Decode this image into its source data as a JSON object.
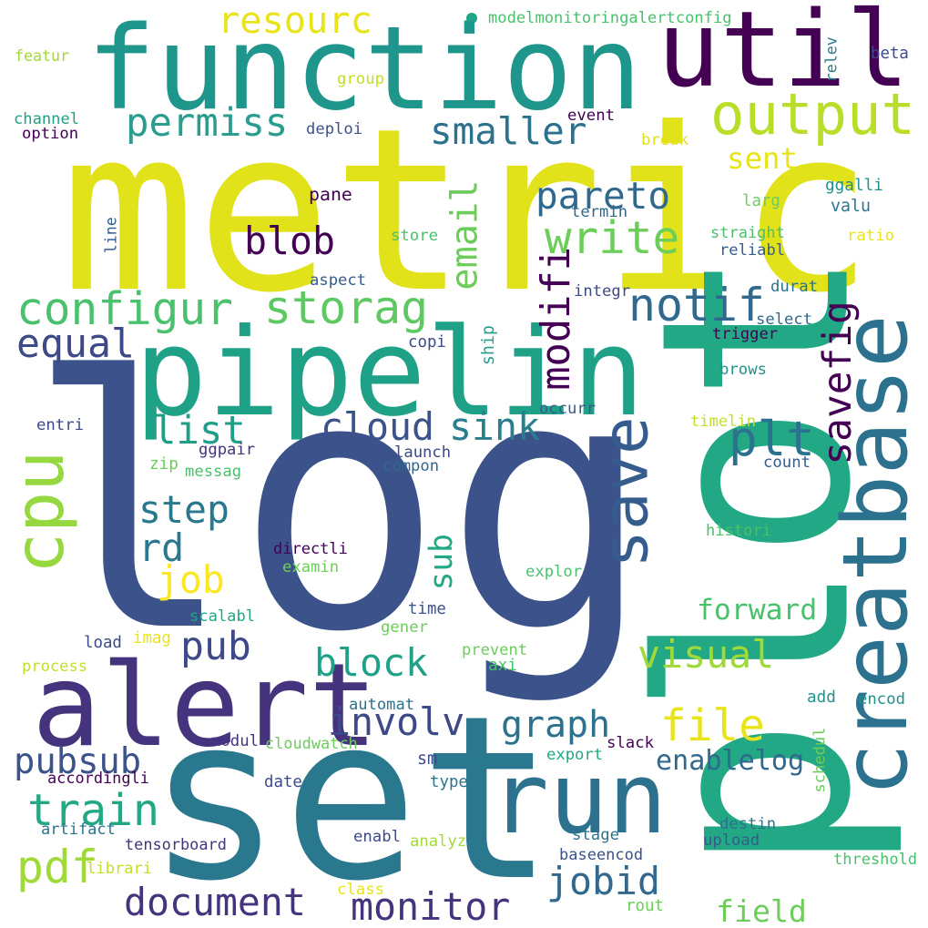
{
  "word_cloud": {
    "background": "#ffffff",
    "palette": [
      "#440154",
      "#46337e",
      "#365c8d",
      "#277f8e",
      "#1fa187",
      "#4ac16d",
      "#a0da39",
      "#fde725"
    ],
    "words": [
      {
        "id": "log",
        "text": "log",
        "color": "#3b528b",
        "rot": 0
      },
      {
        "id": "metric",
        "text": "metric",
        "color": "#e1e21a",
        "rot": 0
      },
      {
        "id": "set",
        "text": "set",
        "color": "#2a788e",
        "rot": 0
      },
      {
        "id": "plot",
        "text": "plot",
        "color": "#22a884",
        "rot": -90
      },
      {
        "id": "function",
        "text": "function",
        "color": "#1f968b",
        "rot": 0
      },
      {
        "id": "util",
        "text": "util",
        "color": "#440154",
        "rot": 0
      },
      {
        "id": "pipelin",
        "text": "pipelin",
        "color": "#1fa187",
        "rot": 0
      },
      {
        "id": "alert",
        "text": "alert",
        "color": "#46337e",
        "rot": 0
      },
      {
        "id": "creatbas",
        "text": "creatbase",
        "color": "#2c728e",
        "rot": -90
      },
      {
        "id": "save",
        "text": "save",
        "color": "#365c8d",
        "rot": -90
      },
      {
        "id": "run",
        "text": "run",
        "color": "#2c728e",
        "rot": 0
      },
      {
        "id": "cpu",
        "text": "cpu",
        "color": "#95d840",
        "rot": -90
      },
      {
        "id": "output",
        "text": "output",
        "color": "#b8de29",
        "rot": 0
      },
      {
        "id": "configur",
        "text": "configur",
        "color": "#4ac16d",
        "rot": 0
      },
      {
        "id": "storag",
        "text": "storag",
        "color": "#5ec962",
        "rot": 0
      },
      {
        "id": "permiss",
        "text": "permiss",
        "color": "#2a9d8f",
        "rot": 0
      },
      {
        "id": "resourc",
        "text": "resourc",
        "color": "#e8e419",
        "rot": 0
      },
      {
        "id": "smaller",
        "text": "smaller",
        "color": "#2c728e",
        "rot": 0
      },
      {
        "id": "pareto",
        "text": "pareto",
        "color": "#31688e",
        "rot": 0
      },
      {
        "id": "write",
        "text": "write",
        "color": "#6ccd5a",
        "rot": 0
      },
      {
        "id": "blob",
        "text": "blob",
        "color": "#440154",
        "rot": 0
      },
      {
        "id": "notif",
        "text": "notif",
        "color": "#31688e",
        "rot": 0
      },
      {
        "id": "email",
        "text": "email",
        "color": "#6ccd5a",
        "rot": -90
      },
      {
        "id": "modifi",
        "text": "modifi",
        "color": "#440154",
        "rot": -90
      },
      {
        "id": "equal",
        "text": "equal",
        "color": "#3e4989",
        "rot": 0
      },
      {
        "id": "list",
        "text": "list",
        "color": "#1f9e89",
        "rot": 0
      },
      {
        "id": "cloud",
        "text": "cloud",
        "color": "#3b528b",
        "rot": 0
      },
      {
        "id": "sink",
        "text": "sink",
        "color": "#277f8e",
        "rot": 0
      },
      {
        "id": "plt",
        "text": "plt",
        "color": "#2c728e",
        "rot": 0
      },
      {
        "id": "savefig",
        "text": "savefig",
        "color": "#440154",
        "rot": -90
      },
      {
        "id": "step",
        "text": "step",
        "color": "#2a788e",
        "rot": 0
      },
      {
        "id": "rd",
        "text": "rd",
        "color": "#2a788e",
        "rot": 0
      },
      {
        "id": "job",
        "text": "job",
        "color": "#fde725",
        "rot": 0
      },
      {
        "id": "sub",
        "text": "sub",
        "color": "#22a884",
        "rot": -90
      },
      {
        "id": "pub",
        "text": "pub",
        "color": "#3e4989",
        "rot": 0
      },
      {
        "id": "block",
        "text": "block",
        "color": "#1fa187",
        "rot": 0
      },
      {
        "id": "visual",
        "text": "visual",
        "color": "#a0da39",
        "rot": 0
      },
      {
        "id": "forward",
        "text": "forward",
        "color": "#4ac16d",
        "rot": 0
      },
      {
        "id": "involv",
        "text": "involv",
        "color": "#3e4989",
        "rot": 0
      },
      {
        "id": "graph",
        "text": "graph",
        "color": "#2c728e",
        "rot": 0
      },
      {
        "id": "file",
        "text": "file",
        "color": "#e8e419",
        "rot": 0
      },
      {
        "id": "enablelog",
        "text": "enablelog",
        "color": "#31688e",
        "rot": 0
      },
      {
        "id": "pubsub",
        "text": "pubsub",
        "color": "#3b528b",
        "rot": 0
      },
      {
        "id": "train",
        "text": "train",
        "color": "#22a884",
        "rot": 0
      },
      {
        "id": "pdf",
        "text": "pdf",
        "color": "#a0da39",
        "rot": 0
      },
      {
        "id": "document",
        "text": "document",
        "color": "#46337e",
        "rot": 0
      },
      {
        "id": "monitor",
        "text": "monitor",
        "color": "#46337e",
        "rot": 0
      },
      {
        "id": "jobid",
        "text": "jobid",
        "color": "#31688e",
        "rot": 0
      },
      {
        "id": "field",
        "text": "field",
        "color": "#6ccd5a",
        "rot": 0
      },
      {
        "id": "sent",
        "text": "sent",
        "color": "#e8e419",
        "rot": 0
      },
      {
        "id": "modelmonitoringalertconfig",
        "text": "modelmonitoringalertconfig",
        "color": "#4ac16d",
        "rot": 0
      },
      {
        "id": "featur",
        "text": "featur",
        "color": "#a0da39",
        "rot": 0
      },
      {
        "id": "channel",
        "text": "channel",
        "color": "#1fa187",
        "rot": 0
      },
      {
        "id": "option",
        "text": "option",
        "color": "#440154",
        "rot": 0
      },
      {
        "id": "group",
        "text": "group",
        "color": "#c2df23",
        "rot": 0
      },
      {
        "id": "deploi",
        "text": "deploi",
        "color": "#3b528b",
        "rot": 0
      },
      {
        "id": "event",
        "text": "event",
        "color": "#440154",
        "rot": 0
      },
      {
        "id": "break",
        "text": "break",
        "color": "#e1e21a",
        "rot": 0
      },
      {
        "id": "relev",
        "text": "relev",
        "color": "#277f8e",
        "rot": -90
      },
      {
        "id": "beta",
        "text": "beta",
        "color": "#3e4989",
        "rot": 0
      },
      {
        "id": "ggalli",
        "text": "ggalli",
        "color": "#21918c",
        "rot": 0
      },
      {
        "id": "valu",
        "text": "valu",
        "color": "#2a788e",
        "rot": 0
      },
      {
        "id": "larg",
        "text": "larg",
        "color": "#6ccd5a",
        "rot": 0
      },
      {
        "id": "ratio",
        "text": "ratio",
        "color": "#e8e419",
        "rot": 0
      },
      {
        "id": "straight",
        "text": "straight",
        "color": "#4ac16d",
        "rot": 0
      },
      {
        "id": "reliabl",
        "text": "reliabl",
        "color": "#365c8d",
        "rot": 0
      },
      {
        "id": "termin",
        "text": "termin",
        "color": "#31688e",
        "rot": 0
      },
      {
        "id": "pane",
        "text": "pane",
        "color": "#440154",
        "rot": 0
      },
      {
        "id": "store",
        "text": "store",
        "color": "#4ac16d",
        "rot": 0
      },
      {
        "id": "line",
        "text": "line",
        "color": "#365c8d",
        "rot": -90
      },
      {
        "id": "aspect",
        "text": "aspect",
        "color": "#365c8d",
        "rot": 0
      },
      {
        "id": "integr",
        "text": "integr",
        "color": "#3e4989",
        "rot": 0
      },
      {
        "id": "durat",
        "text": "durat",
        "color": "#2c728e",
        "rot": 0
      },
      {
        "id": "select",
        "text": "select",
        "color": "#31688e",
        "rot": 0
      },
      {
        "id": "copi",
        "text": "copi",
        "color": "#3e4989",
        "rot": 0
      },
      {
        "id": "ship",
        "text": "ship",
        "color": "#2a9d8f",
        "rot": -90
      },
      {
        "id": "trigger",
        "text": "trigger",
        "color": "#440154",
        "rot": 0
      },
      {
        "id": "brows",
        "text": "brows",
        "color": "#21918c",
        "rot": 0
      },
      {
        "id": "entri",
        "text": "entri",
        "color": "#3e4989",
        "rot": 0
      },
      {
        "id": "occurr",
        "text": "occurr",
        "color": "#365c8d",
        "rot": 0
      },
      {
        "id": "timelin",
        "text": "timelin",
        "color": "#c2df23",
        "rot": 0
      },
      {
        "id": "ggpair",
        "text": "ggpair",
        "color": "#46337e",
        "rot": 0
      },
      {
        "id": "launch",
        "text": "launch",
        "color": "#3e4989",
        "rot": 0
      },
      {
        "id": "compon",
        "text": "compon",
        "color": "#31688e",
        "rot": 0
      },
      {
        "id": "count",
        "text": "count",
        "color": "#365c8d",
        "rot": 0
      },
      {
        "id": "zip",
        "text": "zip",
        "color": "#6ccd5a",
        "rot": 0
      },
      {
        "id": "messag",
        "text": "messag",
        "color": "#4ac16d",
        "rot": 0
      },
      {
        "id": "histori",
        "text": "histori",
        "color": "#4ac16d",
        "rot": 0
      },
      {
        "id": "directli",
        "text": "directli",
        "color": "#440154",
        "rot": 0
      },
      {
        "id": "examin",
        "text": "examin",
        "color": "#6ccd5a",
        "rot": 0
      },
      {
        "id": "explor",
        "text": "explor",
        "color": "#4ac16d",
        "rot": 0
      },
      {
        "id": "time",
        "text": "time",
        "color": "#3b528b",
        "rot": 0
      },
      {
        "id": "scalabl",
        "text": "scalabl",
        "color": "#22a884",
        "rot": 0
      },
      {
        "id": "gener",
        "text": "gener",
        "color": "#6ccd5a",
        "rot": 0
      },
      {
        "id": "load",
        "text": "load",
        "color": "#3e4989",
        "rot": 0
      },
      {
        "id": "imag",
        "text": "imag",
        "color": "#e8e419",
        "rot": 0
      },
      {
        "id": "process",
        "text": "process",
        "color": "#c2df23",
        "rot": 0
      },
      {
        "id": "prevent",
        "text": "prevent",
        "color": "#6ccd5a",
        "rot": 0
      },
      {
        "id": "axi",
        "text": "axi",
        "color": "#4ac16d",
        "rot": 0
      },
      {
        "id": "automat",
        "text": "automat",
        "color": "#2c728e",
        "rot": 0
      },
      {
        "id": "add",
        "text": "add",
        "color": "#21918c",
        "rot": 0
      },
      {
        "id": "encod",
        "text": "encod",
        "color": "#21918c",
        "rot": 0
      },
      {
        "id": "modul",
        "text": "modul",
        "color": "#46337e",
        "rot": 0
      },
      {
        "id": "cloudwatch",
        "text": "cloudwatch",
        "color": "#6ccd5a",
        "rot": 0
      },
      {
        "id": "slack",
        "text": "slack",
        "color": "#440154",
        "rot": 0
      },
      {
        "id": "sm",
        "text": "sm",
        "color": "#3e4989",
        "rot": 0
      },
      {
        "id": "export",
        "text": "export",
        "color": "#22a884",
        "rot": 0
      },
      {
        "id": "schedul",
        "text": "schedul",
        "color": "#6ccd5a",
        "rot": -90
      },
      {
        "id": "accordingli",
        "text": "accordingli",
        "color": "#440154",
        "rot": 0
      },
      {
        "id": "date",
        "text": "date",
        "color": "#3e4989",
        "rot": 0
      },
      {
        "id": "type",
        "text": "type",
        "color": "#2c728e",
        "rot": 0
      },
      {
        "id": "artifact",
        "text": "artifact",
        "color": "#2c728e",
        "rot": 0
      },
      {
        "id": "destin",
        "text": "destin",
        "color": "#2c728e",
        "rot": 0
      },
      {
        "id": "upload",
        "text": "upload",
        "color": "#365c8d",
        "rot": 0
      },
      {
        "id": "tensorboard",
        "text": "tensorboard",
        "color": "#46337e",
        "rot": 0
      },
      {
        "id": "enabl",
        "text": "enabl",
        "color": "#3e4989",
        "rot": 0
      },
      {
        "id": "analyz",
        "text": "analyz",
        "color": "#a0da39",
        "rot": 0
      },
      {
        "id": "stage",
        "text": "stage",
        "color": "#2c728e",
        "rot": 0
      },
      {
        "id": "baseencod",
        "text": "baseencod",
        "color": "#3b528b",
        "rot": 0
      },
      {
        "id": "librari",
        "text": "librari",
        "color": "#c2df23",
        "rot": 0
      },
      {
        "id": "threshold",
        "text": "threshold",
        "color": "#4ac16d",
        "rot": 0
      },
      {
        "id": "class",
        "text": "class",
        "color": "#e8e419",
        "rot": 0
      },
      {
        "id": "rout",
        "text": "rout",
        "color": "#6ccd5a",
        "rot": 0
      }
    ]
  }
}
